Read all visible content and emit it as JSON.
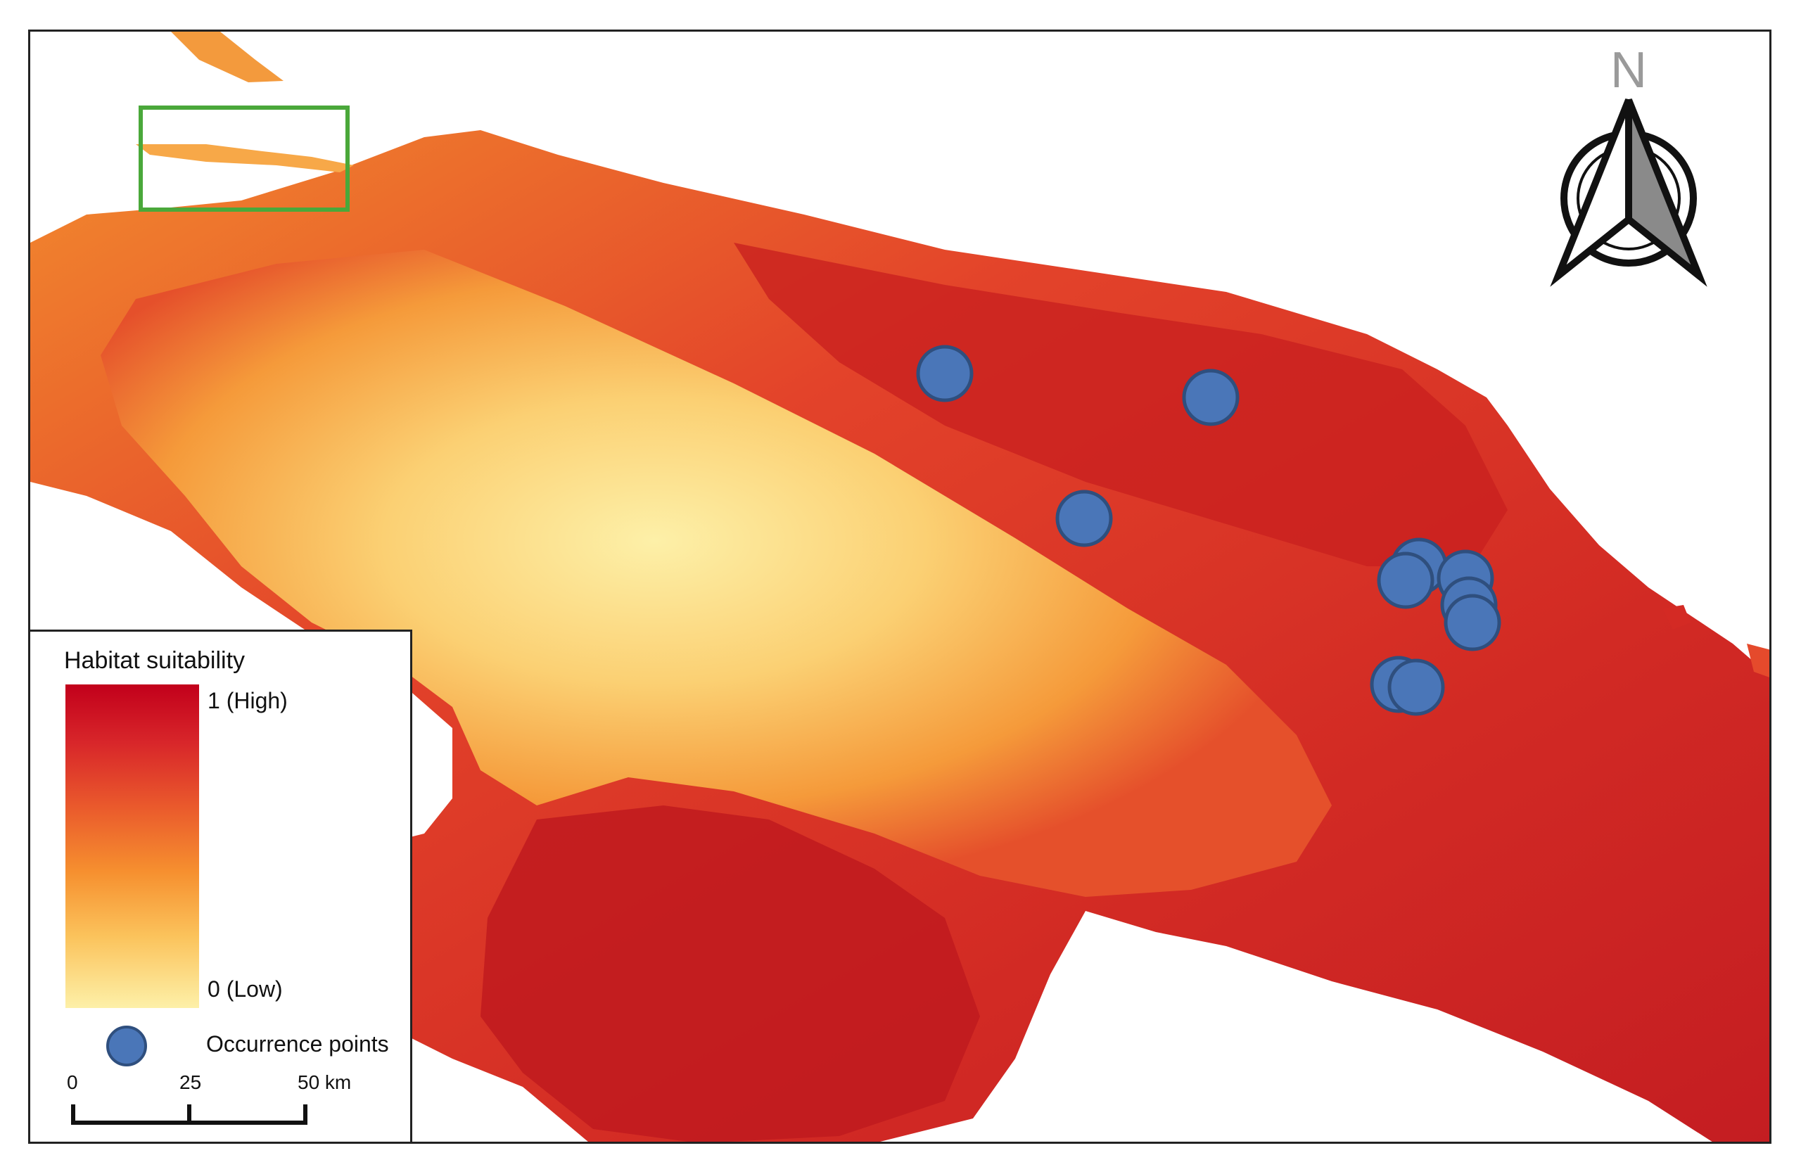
{
  "legend": {
    "title": "Habitat suitability",
    "high_label": "1 (High)",
    "low_label": "0 (Low)",
    "occurrence_label": "Occurrence points",
    "ramp_colors": [
      "#c2001b",
      "#d8262a",
      "#ea5a2c",
      "#f6902f",
      "#fbc35c",
      "#fdf0a8"
    ],
    "occurrence_color": "#4a76b8"
  },
  "scale_bar": {
    "ticks": [
      "0",
      "25",
      "50 km"
    ]
  },
  "north_arrow": {
    "letter": "N",
    "icon": "north-arrow-icon"
  },
  "inset_box": {
    "color": "#4aa83a"
  }
}
